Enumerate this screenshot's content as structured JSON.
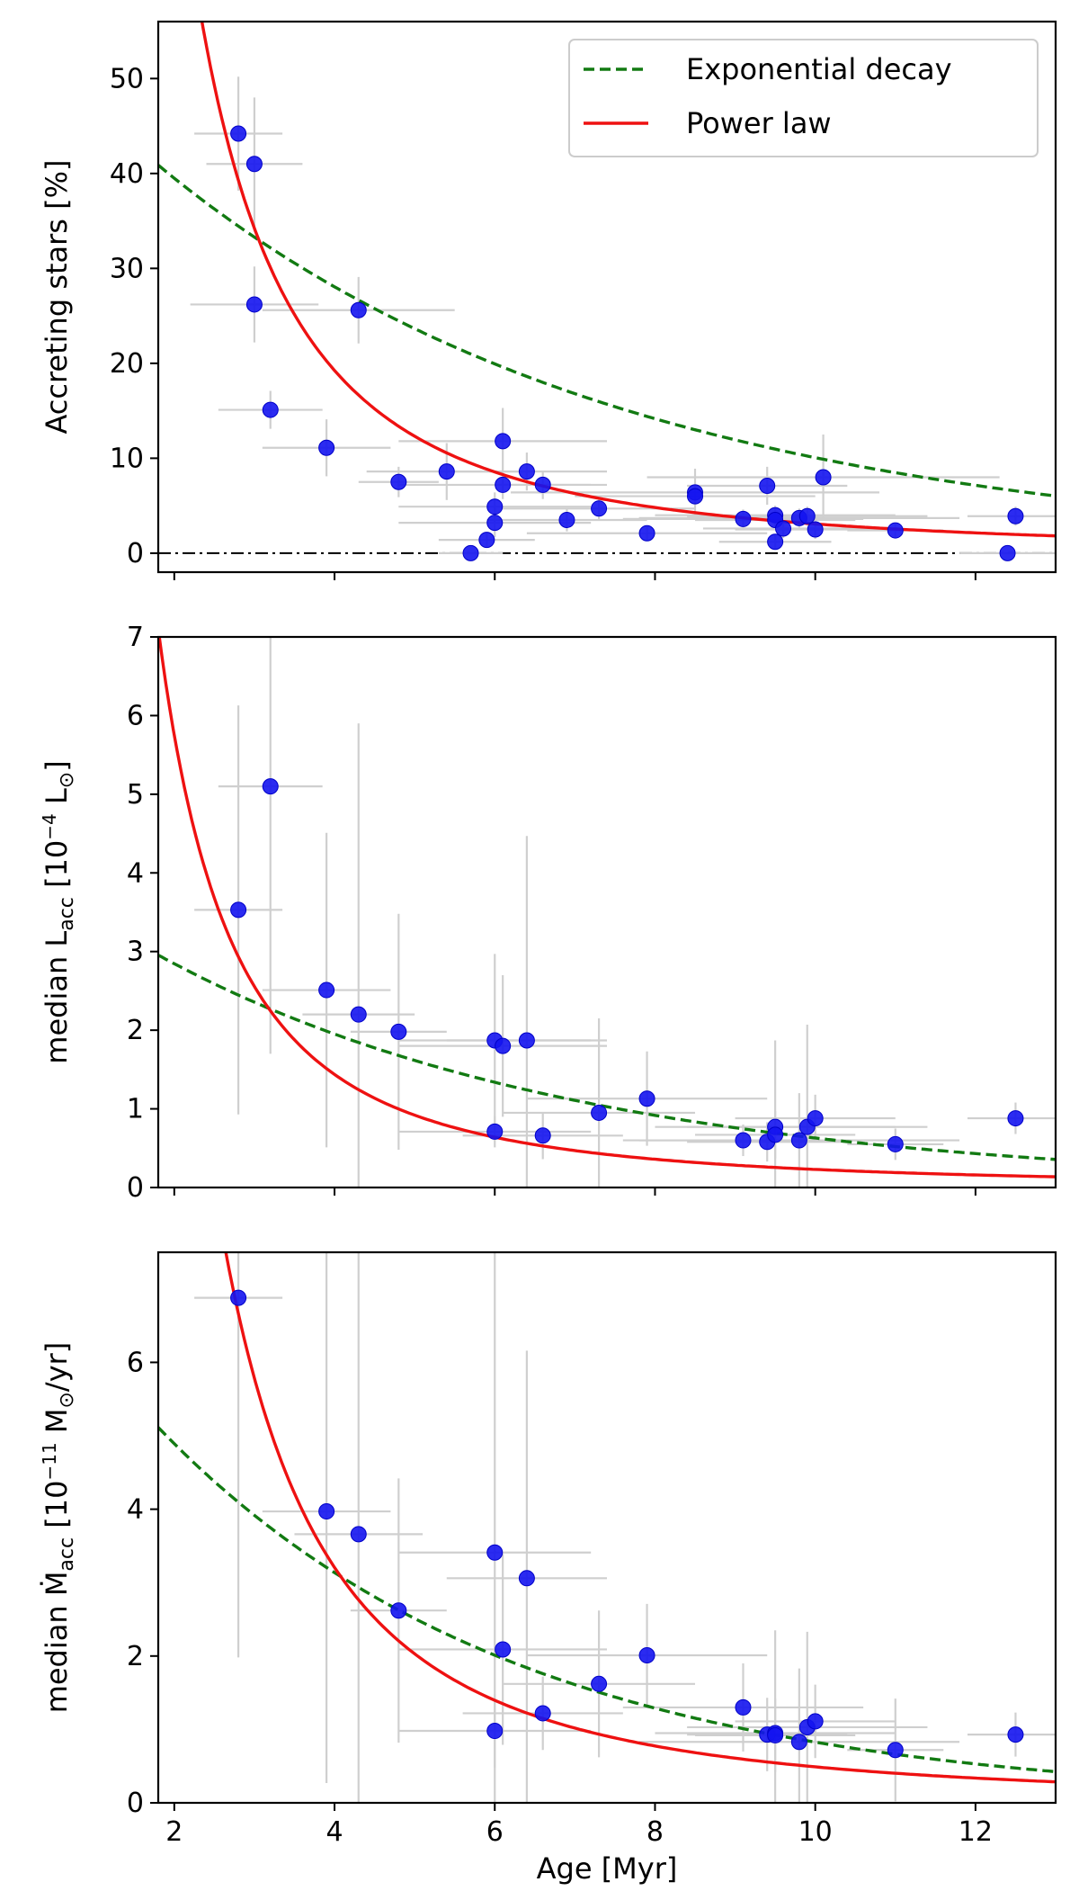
{
  "chart_data": [
    {
      "type": "scatter",
      "id": "accreting",
      "xlabel": "",
      "ylabel": "Accreting stars [%]",
      "xlim": [
        1.8,
        13.0
      ],
      "ylim": [
        -2,
        56
      ],
      "xticks": [
        2,
        4,
        6,
        8,
        10,
        12
      ],
      "xticklabels": [
        "",
        "",
        "",
        "",
        "",
        ""
      ],
      "yticks": [
        0,
        10,
        20,
        30,
        40,
        50
      ],
      "yticklabels": [
        "0",
        "10",
        "20",
        "30",
        "40",
        "50"
      ],
      "zero_line": true,
      "legend": {
        "position": "top-right",
        "entries": [
          {
            "label": "Exponential decay",
            "style": "dashed",
            "color": "#127a12"
          },
          {
            "label": "Power law",
            "style": "solid",
            "color": "#ee1111"
          }
        ]
      },
      "fits": {
        "exponential": {
          "A": 55.6,
          "tau": 5.85
        },
        "power_law": {
          "A": 308,
          "k": 2.0
        }
      },
      "points": [
        {
          "x": 2.8,
          "y": 44.2,
          "xerr": 0.55,
          "yerr": 6
        },
        {
          "x": 3.0,
          "y": 41.0,
          "xerr": 0.6,
          "yerr": 7
        },
        {
          "x": 3.0,
          "y": 26.2,
          "xerr": 0.8,
          "yerr": 4
        },
        {
          "x": 3.2,
          "y": 15.1,
          "xerr": 0.65,
          "yerr": 2
        },
        {
          "x": 3.9,
          "y": 11.1,
          "xerr": 0.8,
          "yerr": 3
        },
        {
          "x": 4.3,
          "y": 25.6,
          "xerr": 1.2,
          "yerr": 3.5
        },
        {
          "x": 4.8,
          "y": 7.5,
          "xerr": 0.5,
          "yerr": 1.6
        },
        {
          "x": 5.4,
          "y": 8.6,
          "xerr": 1.0,
          "yerr": 3
        },
        {
          "x": 5.7,
          "y": 0.0,
          "xerr": 0.4,
          "yerr": 0
        },
        {
          "x": 5.9,
          "y": 1.4,
          "xerr": 0.6,
          "yerr": 0.8
        },
        {
          "x": 6.0,
          "y": 3.2,
          "xerr": 1.2,
          "yerr": 1.5
        },
        {
          "x": 6.0,
          "y": 4.9,
          "xerr": 1.2,
          "yerr": 1.5
        },
        {
          "x": 6.1,
          "y": 11.8,
          "xerr": 1.3,
          "yerr": 3.5
        },
        {
          "x": 6.1,
          "y": 7.2,
          "xerr": 1.3,
          "yerr": 1.5
        },
        {
          "x": 6.4,
          "y": 8.6,
          "xerr": 1.0,
          "yerr": 2
        },
        {
          "x": 6.6,
          "y": 7.2,
          "xerr": 0.6,
          "yerr": 1.5
        },
        {
          "x": 6.9,
          "y": 3.5,
          "xerr": 1.0,
          "yerr": 1.2
        },
        {
          "x": 7.3,
          "y": 4.7,
          "xerr": 1.2,
          "yerr": 1.2
        },
        {
          "x": 7.9,
          "y": 2.1,
          "xerr": 1.5,
          "yerr": 0.8
        },
        {
          "x": 8.5,
          "y": 6.4,
          "xerr": 2.3,
          "yerr": 2.5
        },
        {
          "x": 8.5,
          "y": 6.0,
          "xerr": 1.5,
          "yerr": 1
        },
        {
          "x": 9.1,
          "y": 3.6,
          "xerr": 1.5,
          "yerr": 1
        },
        {
          "x": 9.4,
          "y": 7.1,
          "xerr": 1.0,
          "yerr": 2
        },
        {
          "x": 9.5,
          "y": 4.0,
          "xerr": 1.5,
          "yerr": 1
        },
        {
          "x": 9.5,
          "y": 3.5,
          "xerr": 1.0,
          "yerr": 1
        },
        {
          "x": 9.5,
          "y": 1.2,
          "xerr": 0.7,
          "yerr": 0.7
        },
        {
          "x": 9.6,
          "y": 2.6,
          "xerr": 1.0,
          "yerr": 1
        },
        {
          "x": 9.8,
          "y": 3.7,
          "xerr": 2.0,
          "yerr": 1
        },
        {
          "x": 9.9,
          "y": 3.9,
          "xerr": 1.5,
          "yerr": 1
        },
        {
          "x": 10.0,
          "y": 2.5,
          "xerr": 1.0,
          "yerr": 1
        },
        {
          "x": 10.1,
          "y": 8.0,
          "xerr": 2.2,
          "yerr": 4.5
        },
        {
          "x": 11.0,
          "y": 2.4,
          "xerr": 0.6,
          "yerr": 0.7
        },
        {
          "x": 12.4,
          "y": 0.0,
          "xerr": 0.6,
          "yerr": 0
        },
        {
          "x": 12.5,
          "y": 3.9,
          "xerr": 0.6,
          "yerr": 1
        }
      ]
    },
    {
      "type": "scatter",
      "id": "lacc",
      "xlabel": "",
      "ylabel_parts": [
        "median L",
        "acc",
        " [10",
        "−4",
        " L",
        "⊙",
        "]"
      ],
      "xlim": [
        1.8,
        13.0
      ],
      "ylim": [
        0,
        7
      ],
      "xticks": [
        2,
        4,
        6,
        8,
        10,
        12
      ],
      "xticklabels": [
        "",
        "",
        "",
        "",
        "",
        ""
      ],
      "yticks": [
        0,
        1,
        2,
        3,
        4,
        5,
        6,
        7
      ],
      "yticklabels": [
        "0",
        "1",
        "2",
        "3",
        "4",
        "5",
        "6",
        "7"
      ],
      "zero_line": false,
      "fits": {
        "exponential": {
          "A": 4.15,
          "tau": 5.3
        },
        "power_law": {
          "A": 23.0,
          "k": 2.0
        }
      },
      "points": [
        {
          "x": 2.8,
          "y": 3.53,
          "xerr": 0.55,
          "yerr": 2.6
        },
        {
          "x": 3.2,
          "y": 5.1,
          "xerr": 0.65,
          "yerr": 3.4
        },
        {
          "x": 3.9,
          "y": 2.51,
          "xerr": 0.8,
          "yerr": 2.0
        },
        {
          "x": 4.3,
          "y": 2.2,
          "xerr": 0.7,
          "yerr": 3.7
        },
        {
          "x": 4.8,
          "y": 1.98,
          "xerr": 0.6,
          "yerr": 1.5
        },
        {
          "x": 6.0,
          "y": 1.87,
          "xerr": 1.2,
          "yerr": 1.1
        },
        {
          "x": 6.1,
          "y": 1.8,
          "xerr": 1.3,
          "yerr": 0.9
        },
        {
          "x": 6.0,
          "y": 0.71,
          "xerr": 1.2,
          "yerr": 0.2
        },
        {
          "x": 6.4,
          "y": 1.87,
          "xerr": 1.0,
          "yerr": 2.6
        },
        {
          "x": 6.6,
          "y": 0.66,
          "xerr": 1.0,
          "yerr": 0.3
        },
        {
          "x": 7.3,
          "y": 0.95,
          "xerr": 1.2,
          "yerr": 1.2
        },
        {
          "x": 7.9,
          "y": 1.13,
          "xerr": 1.5,
          "yerr": 0.6
        },
        {
          "x": 9.1,
          "y": 0.6,
          "xerr": 1.5,
          "yerr": 0.2
        },
        {
          "x": 9.4,
          "y": 0.58,
          "xerr": 1.0,
          "yerr": 0.25
        },
        {
          "x": 9.5,
          "y": 0.77,
          "xerr": 1.5,
          "yerr": 1.1
        },
        {
          "x": 9.5,
          "y": 0.67,
          "xerr": 1.0,
          "yerr": 0.3
        },
        {
          "x": 9.8,
          "y": 0.6,
          "xerr": 2.0,
          "yerr": 0.6
        },
        {
          "x": 9.9,
          "y": 0.77,
          "xerr": 1.5,
          "yerr": 1.3
        },
        {
          "x": 10.0,
          "y": 0.88,
          "xerr": 1.0,
          "yerr": 0.3
        },
        {
          "x": 11.0,
          "y": 0.55,
          "xerr": 0.6,
          "yerr": 0.2
        },
        {
          "x": 12.5,
          "y": 0.88,
          "xerr": 0.6,
          "yerr": 0.2
        }
      ]
    },
    {
      "type": "scatter",
      "id": "macc",
      "xlabel": "Age [Myr]",
      "ylabel_parts": [
        "median Ṁ",
        "acc",
        " [10",
        "−11",
        " M",
        "⊙",
        "/yr]"
      ],
      "xlim": [
        1.8,
        13.0
      ],
      "ylim": [
        0,
        7.5
      ],
      "xticks": [
        2,
        4,
        6,
        8,
        10,
        12
      ],
      "xticklabels": [
        "2",
        "4",
        "6",
        "8",
        "10",
        "12"
      ],
      "yticks": [
        0,
        2,
        4,
        6
      ],
      "yticklabels": [
        "0",
        "2",
        "4",
        "6"
      ],
      "zero_line": false,
      "fits": {
        "exponential": {
          "A": 7.63,
          "tau": 4.5
        },
        "power_law": {
          "A": 55.0,
          "k": 2.05
        }
      },
      "points": [
        {
          "x": 2.8,
          "y": 6.88,
          "xerr": 0.55,
          "yerr": 4.9
        },
        {
          "x": 3.9,
          "y": 3.97,
          "xerr": 0.8,
          "yerr": 3.7
        },
        {
          "x": 4.3,
          "y": 3.66,
          "xerr": 0.8,
          "yerr": 4.2
        },
        {
          "x": 4.8,
          "y": 2.62,
          "xerr": 0.6,
          "yerr": 1.8
        },
        {
          "x": 6.0,
          "y": 3.41,
          "xerr": 1.2,
          "yerr": 4.1
        },
        {
          "x": 6.1,
          "y": 2.09,
          "xerr": 1.3,
          "yerr": 1.3
        },
        {
          "x": 6.0,
          "y": 0.98,
          "xerr": 1.2,
          "yerr": 0.5
        },
        {
          "x": 6.4,
          "y": 3.06,
          "xerr": 1.0,
          "yerr": 3.1
        },
        {
          "x": 6.6,
          "y": 1.22,
          "xerr": 1.0,
          "yerr": 0.5
        },
        {
          "x": 7.3,
          "y": 1.62,
          "xerr": 1.2,
          "yerr": 1.0
        },
        {
          "x": 7.9,
          "y": 2.01,
          "xerr": 1.5,
          "yerr": 0.7
        },
        {
          "x": 9.1,
          "y": 1.3,
          "xerr": 1.5,
          "yerr": 0.6
        },
        {
          "x": 9.4,
          "y": 0.93,
          "xerr": 1.0,
          "yerr": 0.5
        },
        {
          "x": 9.5,
          "y": 0.95,
          "xerr": 1.5,
          "yerr": 1.4
        },
        {
          "x": 9.5,
          "y": 0.92,
          "xerr": 1.0,
          "yerr": 0.5
        },
        {
          "x": 9.8,
          "y": 0.83,
          "xerr": 2.0,
          "yerr": 1.0
        },
        {
          "x": 9.9,
          "y": 1.03,
          "xerr": 1.5,
          "yerr": 1.3
        },
        {
          "x": 10.0,
          "y": 1.11,
          "xerr": 1.0,
          "yerr": 0.5
        },
        {
          "x": 11.0,
          "y": 0.72,
          "xerr": 0.6,
          "yerr": 0.7
        },
        {
          "x": 12.5,
          "y": 0.93,
          "xerr": 0.6,
          "yerr": 0.3
        }
      ]
    }
  ]
}
